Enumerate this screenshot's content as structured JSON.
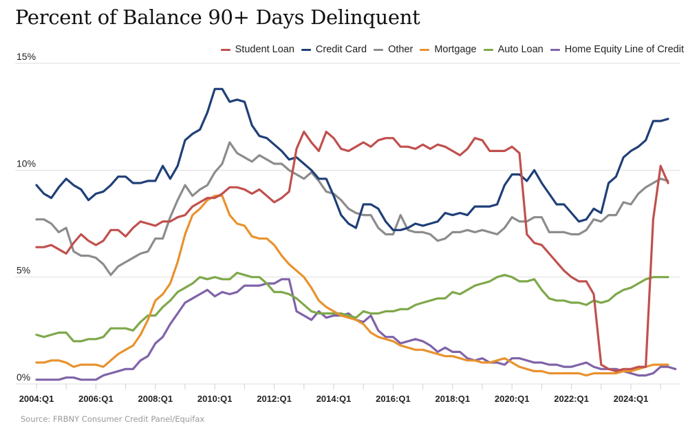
{
  "title": "Percent of Balance 90+ Days Delinquent",
  "source": "Source: FRBNY Consumer Credit Panel/Equifax",
  "chart_data": {
    "type": "line",
    "title": "Percent of Balance 90+ Days Delinquent",
    "xlabel": "",
    "ylabel": "",
    "ylim": [
      0,
      15
    ],
    "yticks": [
      "0%",
      "5%",
      "10%",
      "15%"
    ],
    "ytick_values": [
      0,
      5,
      10,
      15
    ],
    "xtick_labels": [
      "2004:Q1",
      "2006:Q1",
      "2008:Q1",
      "2010:Q1",
      "2012:Q1",
      "2014:Q1",
      "2016:Q1",
      "2018:Q1",
      "2020:Q1",
      "2022:Q1",
      "2024:Q1"
    ],
    "x_start": "2004:Q1",
    "x_end": "2025:Q3",
    "grid": true,
    "legend_position": "top-right",
    "series": [
      {
        "name": "Student Loan",
        "color": "#c0504d",
        "values": [
          6.4,
          6.4,
          6.5,
          6.3,
          6.1,
          6.6,
          7.0,
          6.7,
          6.5,
          6.7,
          7.2,
          7.2,
          6.9,
          7.3,
          7.6,
          7.5,
          7.4,
          7.6,
          7.6,
          7.8,
          7.9,
          8.3,
          8.5,
          8.7,
          8.7,
          8.9,
          9.2,
          9.2,
          9.1,
          8.9,
          9.1,
          8.8,
          8.5,
          8.7,
          9.0,
          11.0,
          11.8,
          11.3,
          10.9,
          11.8,
          11.5,
          11.0,
          10.9,
          11.1,
          11.3,
          11.1,
          11.4,
          11.5,
          11.5,
          11.1,
          11.1,
          11.0,
          11.2,
          11.0,
          11.2,
          11.1,
          10.9,
          10.7,
          11.0,
          11.5,
          11.4,
          10.9,
          10.9,
          10.9,
          11.1,
          10.8,
          7.0,
          6.6,
          6.5,
          6.1,
          5.7,
          5.3,
          5.0,
          4.8,
          4.8,
          4.2,
          0.9,
          0.7,
          0.6,
          0.7,
          0.7,
          0.8,
          0.8,
          7.7,
          10.2,
          9.4
        ]
      },
      {
        "name": "Credit Card",
        "color": "#1f3f77",
        "values": [
          9.3,
          8.9,
          8.7,
          9.2,
          9.6,
          9.3,
          9.1,
          8.6,
          8.9,
          9.0,
          9.3,
          9.7,
          9.7,
          9.4,
          9.4,
          9.5,
          9.5,
          10.2,
          9.6,
          10.2,
          11.4,
          11.7,
          11.9,
          12.7,
          13.8,
          13.8,
          13.2,
          13.3,
          13.2,
          12.1,
          11.6,
          11.5,
          11.2,
          10.9,
          10.5,
          10.6,
          10.3,
          10.0,
          9.6,
          9.6,
          8.8,
          7.9,
          7.5,
          7.3,
          8.4,
          8.4,
          8.2,
          7.6,
          7.2,
          7.2,
          7.3,
          7.5,
          7.4,
          7.5,
          7.6,
          8.0,
          7.9,
          8.0,
          7.9,
          8.3,
          8.3,
          8.3,
          8.4,
          9.3,
          9.8,
          9.8,
          9.5,
          10.0,
          9.4,
          8.9,
          8.4,
          8.4,
          8.0,
          7.6,
          7.7,
          8.2,
          8.0,
          9.4,
          9.7,
          10.6,
          10.9,
          11.1,
          11.4,
          12.3,
          12.3,
          12.4
        ]
      },
      {
        "name": "Other",
        "color": "#8c8c8c",
        "values": [
          7.7,
          7.7,
          7.5,
          7.1,
          7.3,
          6.2,
          6.0,
          6.0,
          5.9,
          5.6,
          5.1,
          5.5,
          5.7,
          5.9,
          6.1,
          6.2,
          6.8,
          6.8,
          7.8,
          8.6,
          9.3,
          8.8,
          9.1,
          9.3,
          9.9,
          10.3,
          11.3,
          10.8,
          10.6,
          10.4,
          10.7,
          10.5,
          10.3,
          10.3,
          10.0,
          9.8,
          9.6,
          9.9,
          9.5,
          9.0,
          8.9,
          8.6,
          8.2,
          8.0,
          7.9,
          7.9,
          7.3,
          7.0,
          7.0,
          7.9,
          7.2,
          7.1,
          7.1,
          7.0,
          6.7,
          6.8,
          7.1,
          7.1,
          7.2,
          7.1,
          7.2,
          7.1,
          7.0,
          7.3,
          7.8,
          7.6,
          7.6,
          7.8,
          7.8,
          7.1,
          7.1,
          7.1,
          7.0,
          7.0,
          7.2,
          7.7,
          7.6,
          7.9,
          7.9,
          8.5,
          8.4,
          8.9,
          9.2,
          9.4,
          9.6,
          9.5
        ]
      },
      {
        "name": "Mortgage",
        "color": "#e8922e",
        "values": [
          1.0,
          1.0,
          1.1,
          1.1,
          1.0,
          0.8,
          0.9,
          0.9,
          0.9,
          0.8,
          1.1,
          1.4,
          1.6,
          1.8,
          2.3,
          3.0,
          3.9,
          4.2,
          4.7,
          5.7,
          7.0,
          7.9,
          8.2,
          8.6,
          8.8,
          8.8,
          7.9,
          7.5,
          7.4,
          6.9,
          6.8,
          6.8,
          6.5,
          6.0,
          5.6,
          5.3,
          5.0,
          4.5,
          3.9,
          3.6,
          3.4,
          3.2,
          3.1,
          3.0,
          2.8,
          2.4,
          2.2,
          2.1,
          2.0,
          1.8,
          1.7,
          1.6,
          1.6,
          1.5,
          1.4,
          1.3,
          1.3,
          1.2,
          1.1,
          1.1,
          1.0,
          1.0,
          1.1,
          1.2,
          1.0,
          0.8,
          0.7,
          0.6,
          0.6,
          0.5,
          0.5,
          0.5,
          0.5,
          0.5,
          0.4,
          0.5,
          0.5,
          0.5,
          0.5,
          0.6,
          0.6,
          0.7,
          0.8,
          0.9,
          0.9,
          0.9
        ]
      },
      {
        "name": "Auto Loan",
        "color": "#7ea84a",
        "values": [
          2.3,
          2.2,
          2.3,
          2.4,
          2.4,
          2.0,
          2.0,
          2.1,
          2.1,
          2.2,
          2.6,
          2.6,
          2.6,
          2.5,
          2.9,
          3.2,
          3.2,
          3.6,
          3.9,
          4.3,
          4.5,
          4.7,
          5.0,
          4.9,
          5.0,
          4.9,
          4.9,
          5.2,
          5.1,
          5.0,
          5.0,
          4.7,
          4.3,
          4.3,
          4.2,
          4.0,
          3.7,
          3.4,
          3.3,
          3.3,
          3.3,
          3.3,
          3.2,
          3.1,
          3.4,
          3.3,
          3.3,
          3.4,
          3.4,
          3.5,
          3.5,
          3.7,
          3.8,
          3.9,
          4.0,
          4.0,
          4.3,
          4.2,
          4.4,
          4.6,
          4.7,
          4.8,
          5.0,
          5.1,
          5.0,
          4.8,
          4.8,
          4.9,
          4.4,
          4.0,
          3.9,
          3.9,
          3.8,
          3.8,
          3.7,
          3.9,
          3.8,
          3.9,
          4.2,
          4.4,
          4.5,
          4.7,
          4.9,
          5.0,
          5.0,
          5.0
        ]
      },
      {
        "name": "Home Equity Line of Credit",
        "color": "#7f63a8",
        "values": [
          0.2,
          0.2,
          0.2,
          0.2,
          0.3,
          0.3,
          0.2,
          0.2,
          0.2,
          0.4,
          0.5,
          0.6,
          0.7,
          0.7,
          1.1,
          1.3,
          1.9,
          2.2,
          2.8,
          3.3,
          3.8,
          4.0,
          4.2,
          4.4,
          4.1,
          4.3,
          4.2,
          4.3,
          4.6,
          4.6,
          4.6,
          4.7,
          4.7,
          4.9,
          4.9,
          3.4,
          3.2,
          3.0,
          3.4,
          3.1,
          3.2,
          3.2,
          3.3,
          3.0,
          2.9,
          3.2,
          2.5,
          2.2,
          2.2,
          1.9,
          2.0,
          2.1,
          2.0,
          1.8,
          1.5,
          1.7,
          1.5,
          1.5,
          1.2,
          1.1,
          1.2,
          1.0,
          1.0,
          0.9,
          1.2,
          1.2,
          1.1,
          1.0,
          1.0,
          0.9,
          0.9,
          0.8,
          0.8,
          0.9,
          1.0,
          0.8,
          0.7,
          0.7,
          0.7,
          0.6,
          0.5,
          0.4,
          0.4,
          0.5,
          0.8,
          0.8,
          0.7
        ]
      }
    ]
  }
}
